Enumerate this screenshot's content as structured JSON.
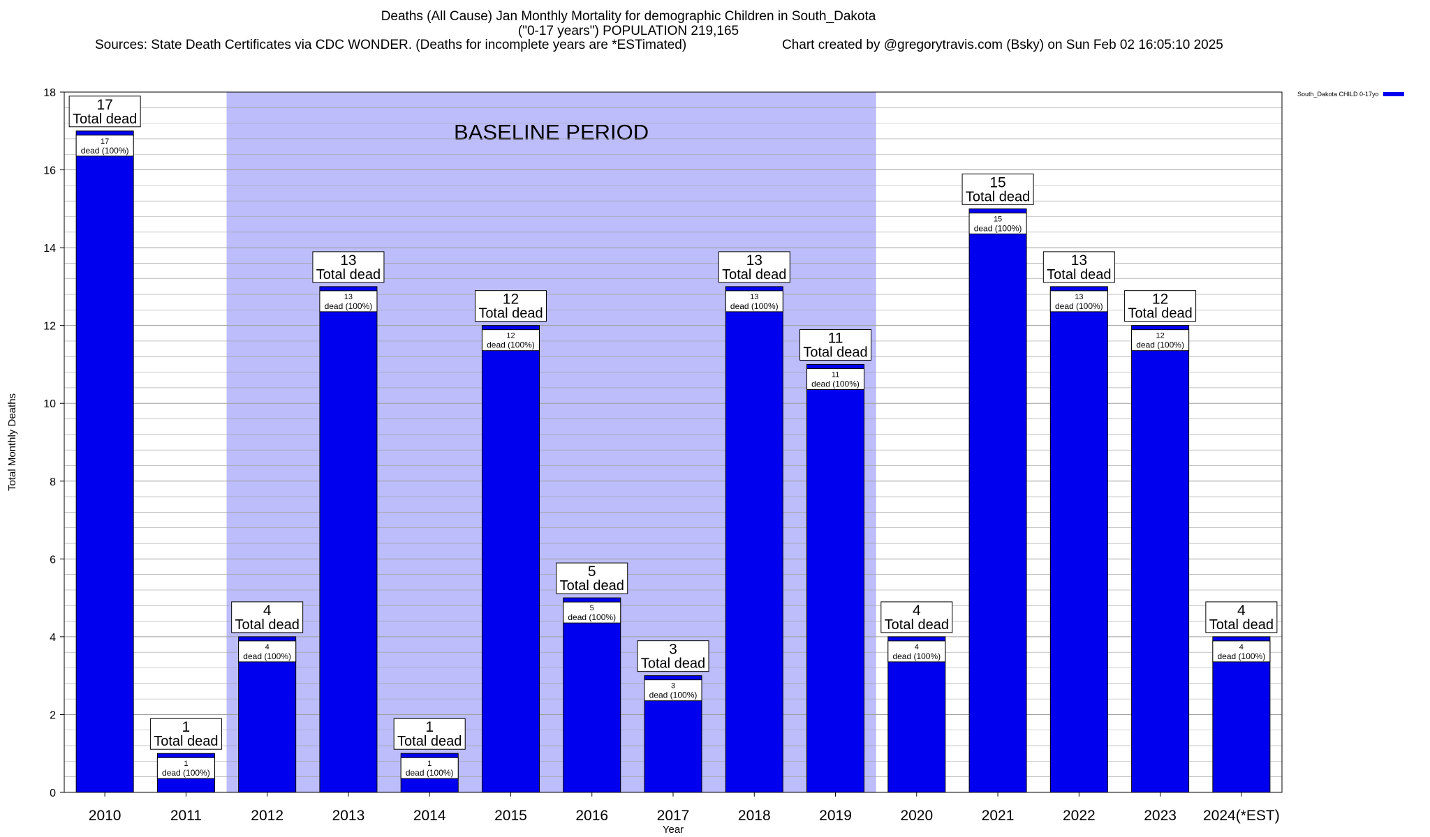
{
  "chart_data": {
    "type": "bar",
    "title": "Deaths (All Cause) Jan Monthly Mortality for demographic Children in South_Dakota",
    "subtitle": "(\"0-17 years\") POPULATION 219,165",
    "sources": "Sources: State Death Certificates via CDC WONDER. (Deaths for incomplete years are *ESTimated)",
    "credit": "Chart created by @gregorytravis.com (Bsky) on Sun Feb 02 16:05:10 2025",
    "xlabel": "Year",
    "ylabel": "Total Monthly Deaths",
    "ylim": [
      0,
      18
    ],
    "yticks": [
      "0",
      "2",
      "4",
      "6",
      "8",
      "10",
      "12",
      "14",
      "16",
      "18"
    ],
    "grid": true,
    "legend": {
      "position": "top-right",
      "label": "South_Dakota CHILD 0-17yo"
    },
    "baseline_label": "BASELINE PERIOD",
    "baseline_range": [
      "2012",
      "2019"
    ],
    "categories": [
      "2010",
      "2011",
      "2012",
      "2013",
      "2014",
      "2015",
      "2016",
      "2017",
      "2018",
      "2019",
      "2020",
      "2021",
      "2022",
      "2023",
      "2024(*EST)"
    ],
    "series": [
      {
        "name": "South_Dakota CHILD 0-17yo",
        "values": [
          17,
          1,
          4,
          13,
          1,
          12,
          5,
          3,
          13,
          11,
          4,
          15,
          13,
          12,
          4
        ]
      }
    ],
    "top_labels": [
      "17",
      "1",
      "4",
      "13",
      "1",
      "12",
      "5",
      "3",
      "13",
      "11",
      "4",
      "15",
      "13",
      "12",
      "4"
    ],
    "top_label_suffix": "Total dead",
    "inner_labels": [
      "17",
      "1",
      "4",
      "13",
      "1",
      "12",
      "5",
      "3",
      "13",
      "11",
      "4",
      "15",
      "13",
      "12",
      "4"
    ],
    "inner_label_suffix": "dead (100%)",
    "colors": {
      "bar": "#0000ee",
      "baseline": "#bcbdfa",
      "grid": "#a0a0a0",
      "bar_edge": "#000000"
    }
  }
}
